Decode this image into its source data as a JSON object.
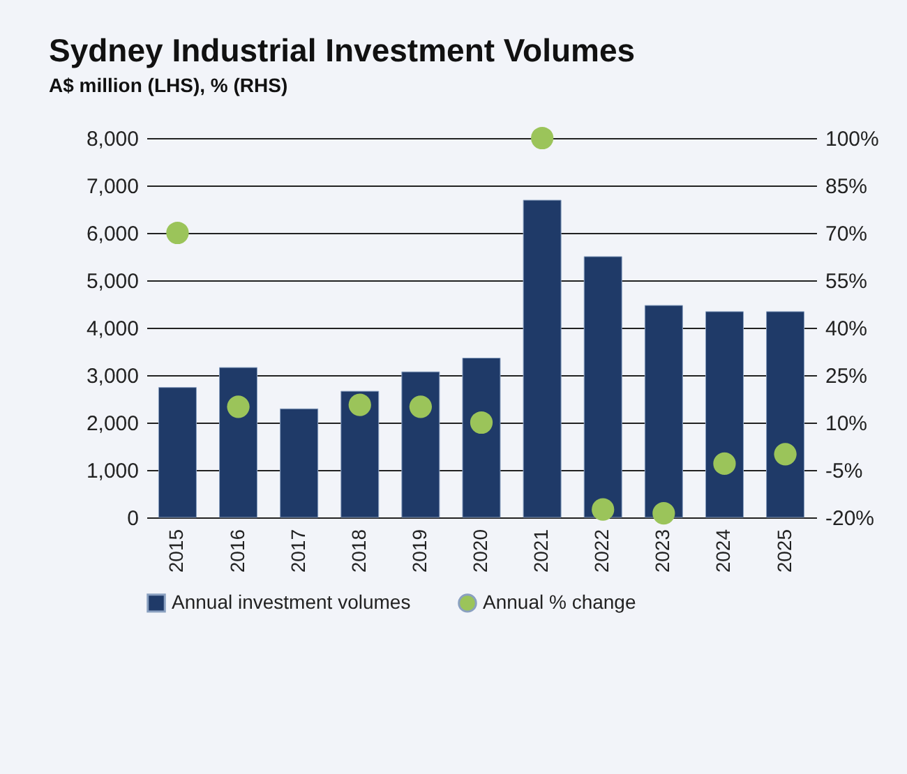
{
  "chart_data": {
    "type": "bar",
    "title": "Sydney Industrial Investment Volumes",
    "subtitle": "A$ million (LHS), % (RHS)",
    "categories": [
      "2015",
      "2016",
      "2017",
      "2018",
      "2019",
      "2020",
      "2021",
      "2022",
      "2023",
      "2024",
      "2025"
    ],
    "series": [
      {
        "name": "Annual investment volumes",
        "color": "#1f3a68",
        "values": [
          2740,
          3160,
          2290,
          2660,
          3070,
          3360,
          6690,
          5500,
          4470,
          4340,
          4340
        ]
      },
      {
        "name": "Annual % change",
        "type": "scatter",
        "axis": "y2",
        "color": "#9bc45a",
        "values": [
          70,
          15,
          null,
          15.6,
          15,
          10,
          100,
          -17.5,
          -18.7,
          -3,
          0
        ]
      }
    ],
    "ylim": [
      0,
      8000
    ],
    "yticks": [
      0,
      {
        "value": 1000,
        "label": "1,000"
      },
      {
        "value": 2000,
        "label": "2,000"
      },
      {
        "value": 3000,
        "label": "3,000"
      },
      {
        "value": 4000,
        "label": "4,000"
      },
      {
        "value": 5000,
        "label": "5,000"
      },
      {
        "value": 6000,
        "label": "6,000"
      },
      {
        "value": 7000,
        "label": "7,000"
      },
      {
        "value": 8000,
        "label": "8,000"
      }
    ],
    "y2lim": [
      -20,
      100
    ],
    "y2ticks": [
      {
        "value": -20,
        "label": "-20%"
      },
      {
        "value": -5,
        "label": "-5%"
      },
      {
        "value": 10,
        "label": "10%"
      },
      {
        "value": 25,
        "label": "25%"
      },
      {
        "value": 40,
        "label": "40%"
      },
      {
        "value": 55,
        "label": "55%"
      },
      {
        "value": 70,
        "label": "70%"
      },
      {
        "value": 85,
        "label": "85%"
      },
      {
        "value": 100,
        "label": "100%"
      }
    ],
    "grid": "y",
    "legend": "bottom",
    "marker": "circle"
  }
}
